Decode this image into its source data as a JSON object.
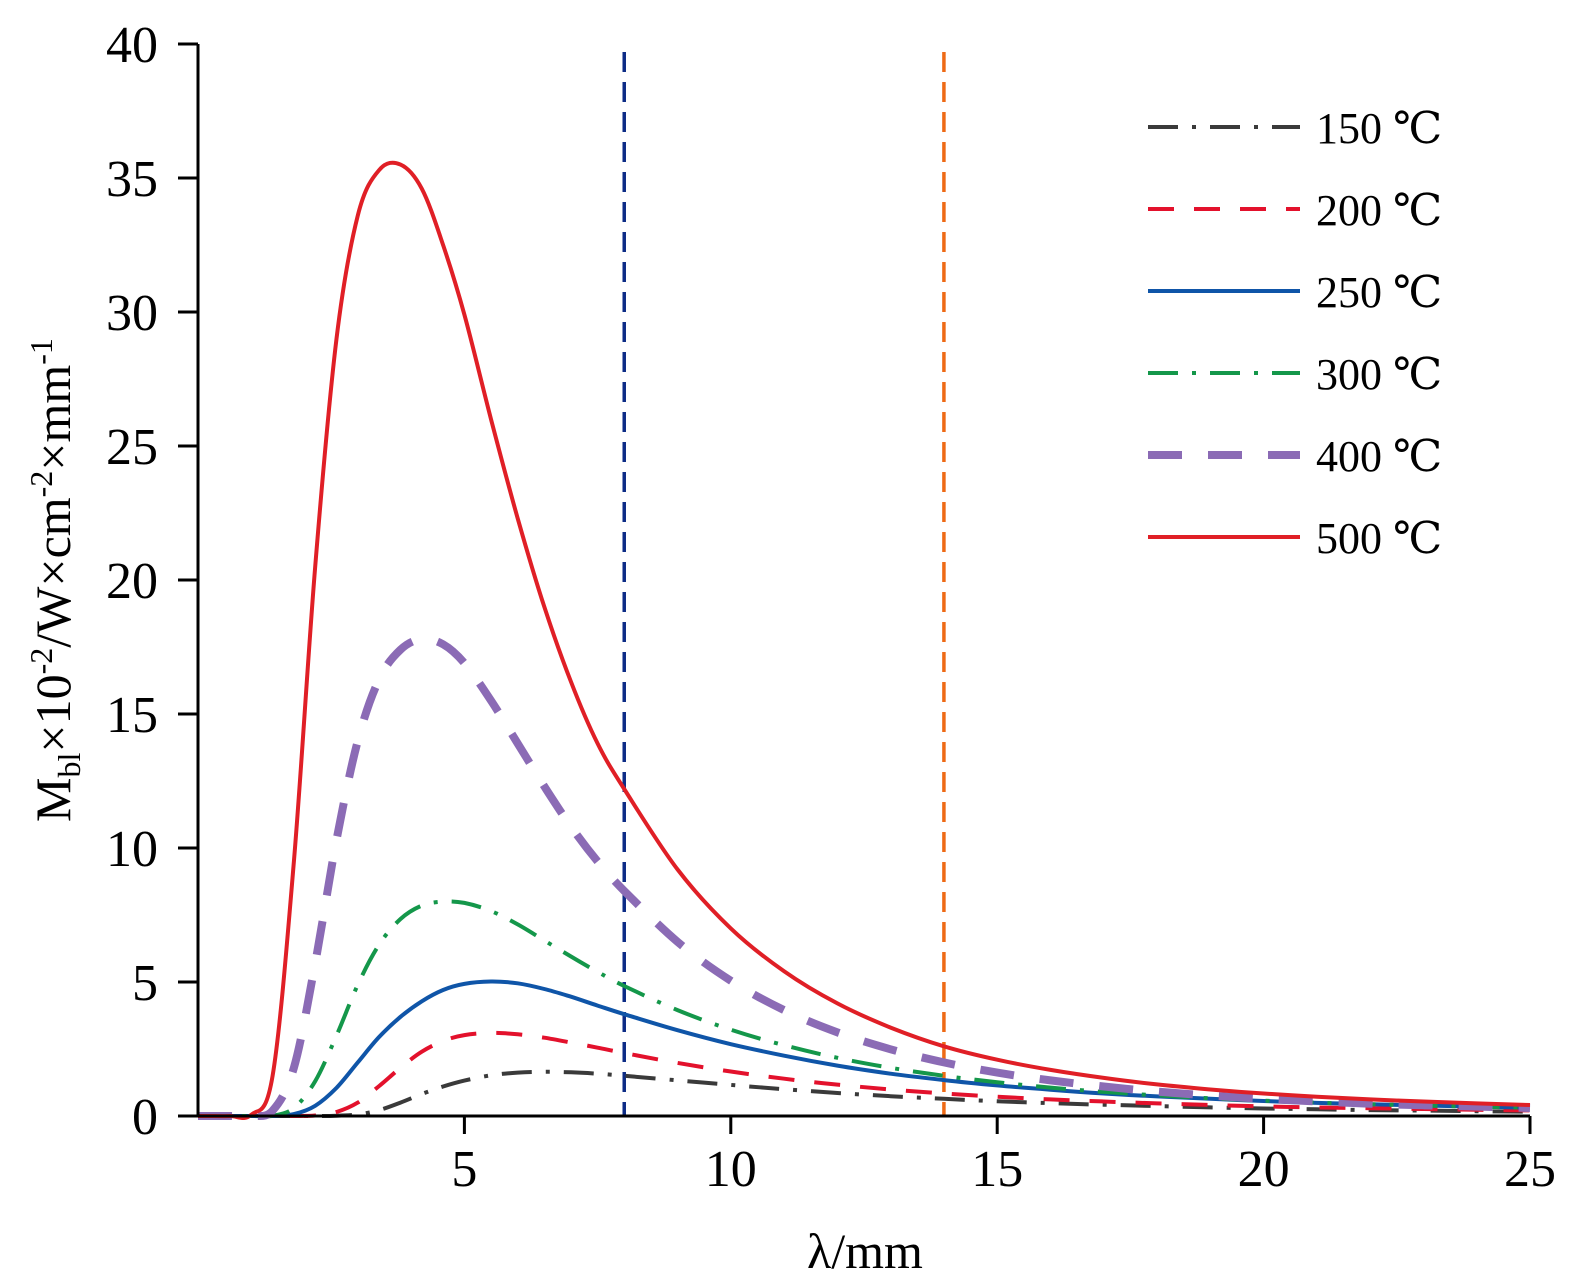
{
  "chart_data": {
    "type": "line",
    "xlabel": "λ/mm",
    "ylabel": {
      "base": "M",
      "base_sub": "bl",
      "rest_1": "×10",
      "sup_1": "-2",
      "rest_2": "/W×cm",
      "sup_2": "-2",
      "rest_3": "×mm",
      "sup_3": "-1"
    },
    "xlim": [
      0,
      25
    ],
    "ylim": [
      0,
      40
    ],
    "x_ticks": [
      5,
      10,
      15,
      20,
      25
    ],
    "y_ticks": [
      0,
      5,
      10,
      15,
      20,
      25,
      30,
      35,
      40
    ],
    "grid": false,
    "legend_position": "top-right",
    "vertical_markers": [
      {
        "x": 8,
        "color": "#0d2c86"
      },
      {
        "x": 14,
        "color": "#ee6a16"
      }
    ],
    "x": [
      0.2,
      0.6,
      1.0,
      1.4,
      1.8,
      2.2,
      2.6,
      3.0,
      3.4,
      3.8,
      4.2,
      4.6,
      5.0,
      5.5,
      6.0,
      6.5,
      7.0,
      7.5,
      8.0,
      9.0,
      10.0,
      11.0,
      12.0,
      13.0,
      14.0,
      15.0,
      16.0,
      17.0,
      18.0,
      19.0,
      20.0,
      21.0,
      22.0,
      23.0,
      24.0,
      25.0
    ],
    "series": [
      {
        "name": "150 ℃",
        "color": "#3a3a3a",
        "dash": "dashdot",
        "width": 4,
        "values": [
          0,
          0,
          0,
          0,
          0,
          0,
          0.01,
          0.06,
          0.22,
          0.5,
          0.82,
          1.1,
          1.32,
          1.52,
          1.62,
          1.65,
          1.63,
          1.58,
          1.5,
          1.33,
          1.16,
          1.0,
          0.86,
          0.74,
          0.64,
          0.55,
          0.48,
          0.42,
          0.37,
          0.32,
          0.28,
          0.25,
          0.22,
          0.2,
          0.18,
          0.16
        ]
      },
      {
        "name": "200 ℃",
        "color": "#e3112c",
        "dash": "dash",
        "width": 4,
        "values": [
          0,
          0,
          0,
          0,
          0,
          0.02,
          0.15,
          0.5,
          1.12,
          1.8,
          2.4,
          2.8,
          3.02,
          3.1,
          3.05,
          2.92,
          2.74,
          2.55,
          2.35,
          1.98,
          1.66,
          1.39,
          1.17,
          0.99,
          0.84,
          0.72,
          0.62,
          0.54,
          0.47,
          0.41,
          0.36,
          0.32,
          0.29,
          0.26,
          0.23,
          0.21
        ]
      },
      {
        "name": "250 ℃",
        "color": "#0f55a8",
        "dash": "solid",
        "width": 4,
        "values": [
          0,
          0,
          0,
          0,
          0.07,
          0.38,
          1.05,
          2.0,
          2.95,
          3.7,
          4.28,
          4.7,
          4.93,
          5.02,
          4.95,
          4.74,
          4.45,
          4.12,
          3.8,
          3.2,
          2.68,
          2.25,
          1.88,
          1.58,
          1.34,
          1.14,
          0.98,
          0.84,
          0.73,
          0.64,
          0.56,
          0.49,
          0.44,
          0.39,
          0.35,
          0.31
        ]
      },
      {
        "name": "300 ℃",
        "color": "#14974a",
        "dash": "dashdot",
        "width": 4,
        "values": [
          0,
          0,
          0,
          0.01,
          0.3,
          1.3,
          3.0,
          4.9,
          6.4,
          7.35,
          7.85,
          8.0,
          7.95,
          7.65,
          7.15,
          6.55,
          5.95,
          5.38,
          4.85,
          3.95,
          3.22,
          2.64,
          2.17,
          1.8,
          1.5,
          1.26,
          1.06,
          0.9,
          0.77,
          0.66,
          0.57,
          0.5,
          0.44,
          0.39,
          0.35,
          0.31
        ]
      },
      {
        "name": "400 ℃",
        "color": "#8b6bb5",
        "dash": "longdash",
        "width": 8,
        "values": [
          0,
          0,
          0,
          0.2,
          1.8,
          5.7,
          10.3,
          14.0,
          16.3,
          17.4,
          17.8,
          17.6,
          16.9,
          15.5,
          13.9,
          12.3,
          10.8,
          9.5,
          8.4,
          6.5,
          5.05,
          3.95,
          3.12,
          2.49,
          2.0,
          1.62,
          1.33,
          1.1,
          0.91,
          0.76,
          0.64,
          0.54,
          0.46,
          0.4,
          0.35,
          0.3
        ]
      },
      {
        "name": "500 ℃",
        "color": "#e01f26",
        "dash": "solid",
        "width": 4,
        "values": [
          0,
          0,
          0.05,
          1.5,
          9.5,
          20.5,
          29.0,
          33.6,
          35.3,
          35.5,
          34.6,
          32.5,
          29.9,
          26.0,
          22.3,
          19.0,
          16.2,
          13.9,
          12.2,
          9.2,
          7.0,
          5.4,
          4.2,
          3.3,
          2.6,
          2.1,
          1.72,
          1.42,
          1.18,
          0.99,
          0.84,
          0.72,
          0.62,
          0.54,
          0.47,
          0.41
        ]
      }
    ]
  }
}
